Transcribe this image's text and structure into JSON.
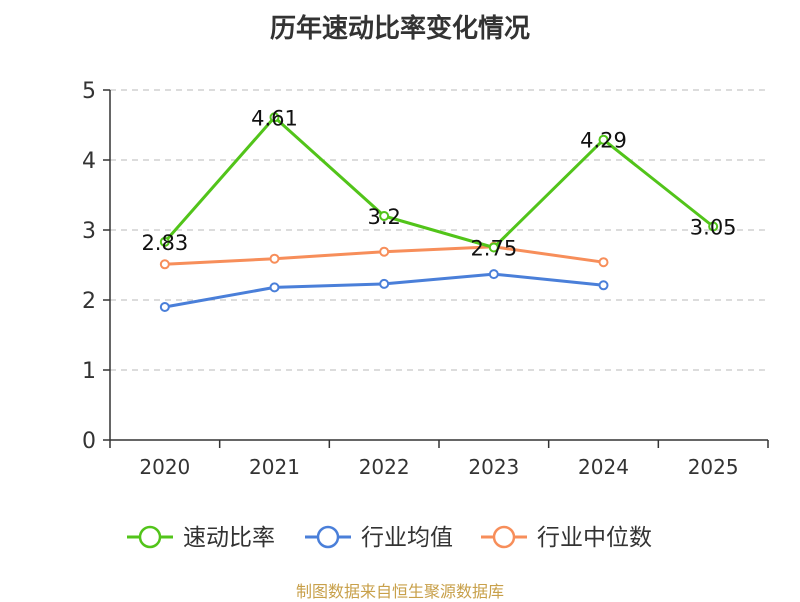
{
  "chart_data": {
    "type": "line",
    "title": "历年速动比率变化情况",
    "categories": [
      "2020",
      "2021",
      "2022",
      "2023",
      "2024",
      "2025"
    ],
    "ylim": [
      0,
      5
    ],
    "yticks": [
      0,
      1,
      2,
      3,
      4,
      5
    ],
    "grid": true,
    "legend_position": "bottom",
    "series": [
      {
        "name": "速动比率",
        "color": "#52c41a",
        "values": [
          2.83,
          4.61,
          3.2,
          2.75,
          4.29,
          3.05
        ],
        "labels": [
          "2.83",
          "4.61",
          "3.2",
          "2.75",
          "4.29",
          "3.05"
        ]
      },
      {
        "name": "行业均值",
        "color": "#4a7fd9",
        "values": [
          1.9,
          2.18,
          2.23,
          2.37,
          2.21,
          null
        ]
      },
      {
        "name": "行业中位数",
        "color": "#f78e5a",
        "values": [
          2.51,
          2.59,
          2.69,
          2.76,
          2.54,
          null
        ]
      }
    ]
  },
  "source": "制图数据来自恒生聚源数据库"
}
